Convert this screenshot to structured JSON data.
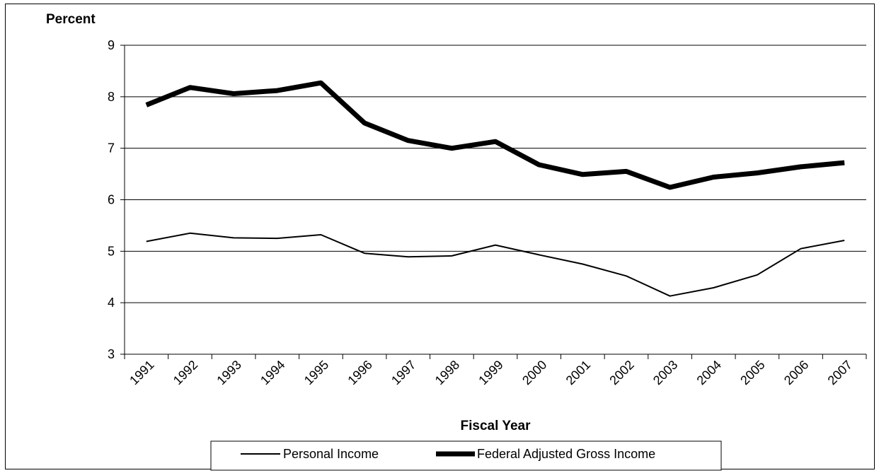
{
  "chart_data": {
    "type": "line",
    "title": "",
    "xlabel": "Fiscal Year",
    "ylabel": "Percent",
    "ylim": [
      3,
      9
    ],
    "yticks": [
      3,
      4,
      5,
      6,
      7,
      8,
      9
    ],
    "grid": "horizontal",
    "legend_position": "bottom",
    "categories": [
      "1991",
      "1992",
      "1993",
      "1994",
      "1995",
      "1996",
      "1997",
      "1998",
      "1999",
      "2000",
      "2001",
      "2002",
      "2003",
      "2004",
      "2005",
      "2006",
      "2007"
    ],
    "series": [
      {
        "name": "Personal Income",
        "style": "thin",
        "color": "#000000",
        "values": [
          5.19,
          5.35,
          5.26,
          5.25,
          5.32,
          4.96,
          4.89,
          4.91,
          5.12,
          4.93,
          4.75,
          4.52,
          4.13,
          4.29,
          4.54,
          5.05,
          5.21
        ]
      },
      {
        "name": "Federal Adjusted Gross Income",
        "style": "thick",
        "color": "#000000",
        "values": [
          7.84,
          8.18,
          8.06,
          8.12,
          8.27,
          7.49,
          7.15,
          7.0,
          7.13,
          6.68,
          6.49,
          6.55,
          6.24,
          6.44,
          6.52,
          6.64,
          6.72
        ]
      }
    ]
  }
}
